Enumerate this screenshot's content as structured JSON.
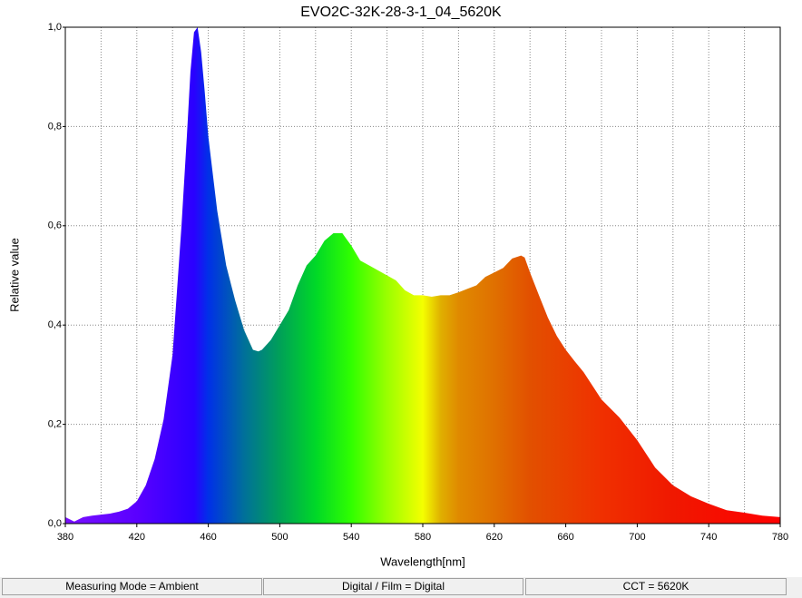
{
  "chart_data": {
    "type": "area",
    "title": "EVO2C-32K-28-3-1_04_5620K",
    "xlabel": "Wavelength[nm]",
    "ylabel": "Relative value",
    "x": [
      380,
      385,
      390,
      395,
      400,
      405,
      410,
      415,
      420,
      425,
      430,
      435,
      440,
      445,
      448,
      450,
      452,
      454,
      456,
      458,
      460,
      465,
      470,
      475,
      480,
      485,
      488,
      490,
      495,
      500,
      505,
      510,
      515,
      520,
      525,
      530,
      535,
      540,
      545,
      550,
      555,
      560,
      565,
      570,
      575,
      580,
      585,
      590,
      595,
      600,
      605,
      610,
      615,
      620,
      625,
      630,
      635,
      637,
      640,
      645,
      650,
      655,
      660,
      665,
      670,
      680,
      690,
      700,
      710,
      720,
      730,
      740,
      750,
      760,
      770,
      780
    ],
    "series": [
      {
        "values": [
          0.013,
          0.004,
          0.013,
          0.016,
          0.018,
          0.02,
          0.024,
          0.03,
          0.045,
          0.077,
          0.13,
          0.21,
          0.34,
          0.6,
          0.78,
          0.91,
          0.99,
          1.0,
          0.95,
          0.87,
          0.78,
          0.63,
          0.52,
          0.45,
          0.39,
          0.35,
          0.347,
          0.35,
          0.37,
          0.4,
          0.43,
          0.48,
          0.52,
          0.54,
          0.57,
          0.585,
          0.585,
          0.56,
          0.53,
          0.52,
          0.51,
          0.5,
          0.49,
          0.47,
          0.46,
          0.46,
          0.457,
          0.46,
          0.46,
          0.466,
          0.473,
          0.48,
          0.497,
          0.506,
          0.515,
          0.534,
          0.54,
          0.536,
          0.506,
          0.46,
          0.415,
          0.378,
          0.35,
          0.327,
          0.305,
          0.25,
          0.214,
          0.168,
          0.113,
          0.077,
          0.055,
          0.04,
          0.027,
          0.022,
          0.016,
          0.013
        ]
      }
    ],
    "xlim": [
      380,
      780
    ],
    "xticks": [
      380,
      420,
      460,
      500,
      540,
      580,
      620,
      660,
      700,
      740,
      780
    ],
    "xgrid": [
      380,
      400,
      420,
      440,
      460,
      480,
      500,
      520,
      540,
      560,
      580,
      600,
      620,
      640,
      660,
      680,
      700,
      720,
      740,
      760,
      780
    ],
    "ylim": [
      0,
      1
    ],
    "yticks": [
      {
        "value": 0,
        "label": "0,0"
      },
      {
        "value": 0.2,
        "label": "0,2"
      },
      {
        "value": 0.4,
        "label": "0,4"
      },
      {
        "value": 0.6,
        "label": "0,6"
      },
      {
        "value": 0.8,
        "label": "0,8"
      },
      {
        "value": 1,
        "label": "1,0"
      }
    ],
    "grid": true
  },
  "status_bar": [
    "Measuring Mode = Ambient",
    "Digital / Film = Digital",
    "CCT = 5620K"
  ]
}
